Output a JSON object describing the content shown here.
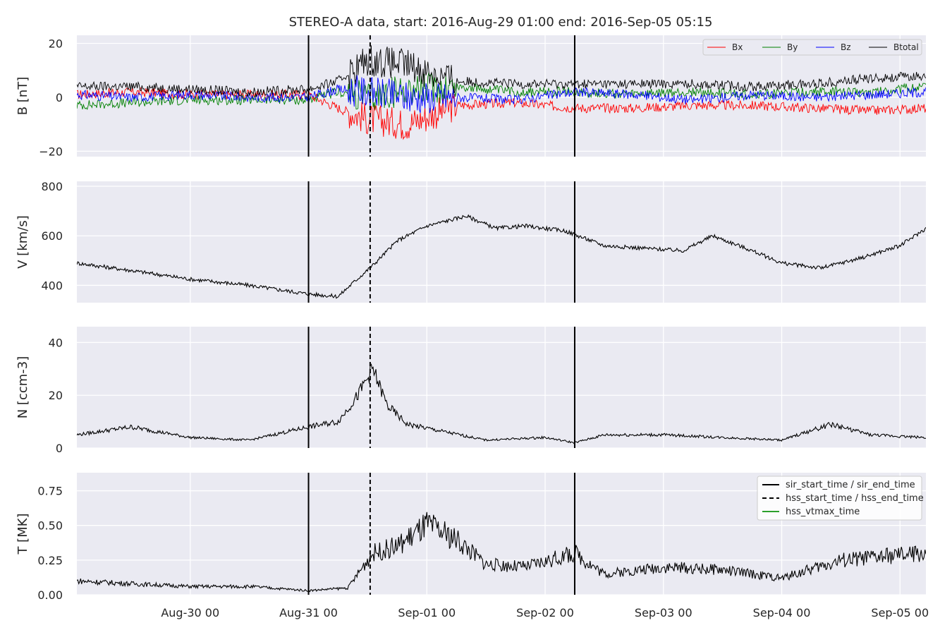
{
  "title": "STEREO-A data, start: 2016-Aug-29 01:00  end: 2016-Sep-05 05:15",
  "colors": {
    "axes_bg": "#eaeaf2",
    "grid": "#ffffff",
    "Bx": "#ff0000",
    "By": "#008000",
    "Bz": "#0000ff",
    "Btotal": "#000000",
    "hss_vtmax": "#2ca02c"
  },
  "chart_data": [
    {
      "type": "line",
      "panel": "B",
      "ylabel": "B [nT]",
      "ylim": [
        -22,
        23
      ],
      "yticks": [
        -20,
        0,
        20
      ],
      "ytick_labels": [
        "−20",
        "0",
        "20"
      ],
      "grid": true,
      "legend_placement": "upper right",
      "legend": [
        "Bx",
        "By",
        "Bz",
        "Btotal"
      ],
      "series": [
        {
          "name": "Bx",
          "x": [
            "Aug-29 01:00",
            "Aug-29 12:00",
            "Aug-30 00:00",
            "Aug-30 12:00",
            "Aug-31 00:00",
            "Aug-31 06:00",
            "Aug-31 12:00",
            "Aug-31 20:00",
            "Sep-01 06:00",
            "Sep-01 18:00",
            "Sep-02 06:00",
            "Sep-02 18:00",
            "Sep-03 06:00",
            "Sep-03 18:00",
            "Sep-04 06:00",
            "Sep-04 18:00",
            "Sep-05 05:15"
          ],
          "values": [
            1,
            2,
            1,
            1,
            1,
            -4,
            -8,
            -10,
            -3,
            -2,
            -4,
            -4,
            -3,
            -3,
            -4,
            -5,
            -4
          ]
        },
        {
          "name": "By",
          "x": [
            "Aug-29 01:00",
            "Aug-29 12:00",
            "Aug-30 00:00",
            "Aug-30 12:00",
            "Aug-31 00:00",
            "Aug-31 06:00",
            "Aug-31 12:00",
            "Aug-31 20:00",
            "Sep-01 06:00",
            "Sep-01 18:00",
            "Sep-02 06:00",
            "Sep-02 18:00",
            "Sep-03 06:00",
            "Sep-03 18:00",
            "Sep-04 06:00",
            "Sep-04 18:00",
            "Sep-05 05:15"
          ],
          "values": [
            -3,
            -2,
            -1,
            -1,
            -1,
            2,
            0,
            3,
            4,
            2,
            2,
            1,
            2,
            1,
            2,
            2,
            4
          ]
        },
        {
          "name": "Bz",
          "x": [
            "Aug-29 01:00",
            "Aug-29 12:00",
            "Aug-30 00:00",
            "Aug-30 12:00",
            "Aug-31 00:00",
            "Aug-31 06:00",
            "Aug-31 12:00",
            "Aug-31 20:00",
            "Sep-01 06:00",
            "Sep-01 18:00",
            "Sep-02 06:00",
            "Sep-02 18:00",
            "Sep-03 06:00",
            "Sep-03 18:00",
            "Sep-04 06:00",
            "Sep-04 18:00",
            "Sep-05 05:15"
          ],
          "values": [
            1,
            0,
            1,
            0,
            0,
            3,
            2,
            0,
            0,
            -1,
            2,
            1,
            -1,
            1,
            0,
            1,
            2
          ]
        },
        {
          "name": "Btotal",
          "x": [
            "Aug-29 01:00",
            "Aug-29 12:00",
            "Aug-30 00:00",
            "Aug-30 12:00",
            "Aug-31 00:00",
            "Aug-31 06:00",
            "Aug-31 12:00",
            "Aug-31 20:00",
            "Sep-01 06:00",
            "Sep-01 18:00",
            "Sep-02 06:00",
            "Sep-02 18:00",
            "Sep-03 06:00",
            "Sep-03 18:00",
            "Sep-04 06:00",
            "Sep-04 18:00",
            "Sep-05 05:15"
          ],
          "values": [
            4,
            4,
            3,
            2,
            3,
            6,
            14,
            12,
            6,
            5,
            5,
            5,
            5,
            4,
            5,
            7,
            8
          ]
        }
      ]
    },
    {
      "type": "line",
      "panel": "V",
      "ylabel": "V [km/s]",
      "ylim": [
        330,
        820
      ],
      "yticks": [
        400,
        600,
        800
      ],
      "ytick_labels": [
        "400",
        "600",
        "800"
      ],
      "grid": true,
      "series": [
        {
          "name": "",
          "x": [
            "Aug-29 01:00",
            "Aug-29 12:00",
            "Aug-30 00:00",
            "Aug-30 12:00",
            "Aug-31 00:00",
            "Aug-31 06:00",
            "Aug-31 09:00",
            "Aug-31 13:00",
            "Aug-31 18:00",
            "Sep-01 00:00",
            "Sep-01 08:00",
            "Sep-01 14:00",
            "Sep-01 20:00",
            "Sep-02 04:00",
            "Sep-02 12:00",
            "Sep-02 20:00",
            "Sep-03 04:00",
            "Sep-03 10:00",
            "Sep-03 18:00",
            "Sep-04 00:00",
            "Sep-04 08:00",
            "Sep-04 16:00",
            "Sep-05 00:00",
            "Sep-05 05:15"
          ],
          "values": [
            490,
            460,
            425,
            400,
            365,
            355,
            410,
            480,
            580,
            640,
            680,
            630,
            640,
            620,
            560,
            550,
            540,
            600,
            540,
            490,
            470,
            510,
            560,
            630
          ]
        }
      ]
    },
    {
      "type": "line",
      "panel": "N",
      "ylabel": "N [ccm-3]",
      "ylim": [
        0,
        46
      ],
      "yticks": [
        0,
        20,
        40
      ],
      "ytick_labels": [
        "0",
        "20",
        "40"
      ],
      "grid": true,
      "series": [
        {
          "name": "",
          "x": [
            "Aug-29 01:00",
            "Aug-29 12:00",
            "Aug-30 00:00",
            "Aug-30 12:00",
            "Aug-31 00:00",
            "Aug-31 06:00",
            "Aug-31 10:00",
            "Aug-31 13:00",
            "Aug-31 16:00",
            "Aug-31 20:00",
            "Sep-01 04:00",
            "Sep-01 12:00",
            "Sep-02 00:00",
            "Sep-02 06:00",
            "Sep-02 12:00",
            "Sep-03 00:00",
            "Sep-03 12:00",
            "Sep-04 00:00",
            "Sep-04 10:00",
            "Sep-04 18:00",
            "Sep-05 05:15"
          ],
          "values": [
            5,
            8,
            4,
            3,
            8,
            10,
            20,
            30,
            16,
            9,
            6,
            3,
            4,
            2,
            5,
            5,
            4,
            3,
            9,
            5,
            4
          ]
        }
      ]
    },
    {
      "type": "line",
      "panel": "T",
      "ylabel": "T [MK]",
      "ylim": [
        0,
        0.88
      ],
      "yticks": [
        0,
        0.25,
        0.5,
        0.75
      ],
      "ytick_labels": [
        "0.00",
        "0.25",
        "0.50",
        "0.75"
      ],
      "grid": true,
      "legend_placement": "upper right",
      "legend": [
        "sir_start_time / sir_end_time",
        "hss_start_time / hss_end_time",
        "hss_vtmax_time"
      ],
      "series": [
        {
          "name": "",
          "x": [
            "Aug-29 01:00",
            "Aug-29 12:00",
            "Aug-30 00:00",
            "Aug-30 12:00",
            "Aug-31 00:00",
            "Aug-31 08:00",
            "Aug-31 13:00",
            "Aug-31 18:00",
            "Sep-01 00:00",
            "Sep-01 06:00",
            "Sep-01 12:00",
            "Sep-01 20:00",
            "Sep-02 06:00",
            "Sep-02 12:00",
            "Sep-03 00:00",
            "Sep-03 12:00",
            "Sep-04 00:00",
            "Sep-04 12:00",
            "Sep-05 05:15"
          ],
          "values": [
            0.1,
            0.08,
            0.06,
            0.06,
            0.03,
            0.05,
            0.3,
            0.35,
            0.5,
            0.4,
            0.22,
            0.2,
            0.3,
            0.15,
            0.2,
            0.18,
            0.12,
            0.25,
            0.3
          ]
        }
      ]
    }
  ],
  "xaxis": {
    "start": "2016-Aug-29 01:00",
    "end": "2016-Sep-05 05:15",
    "ticks": [
      "Aug-30 00:00",
      "Aug-31 00:00",
      "Sep-01 00:00",
      "Sep-02 00:00",
      "Sep-03 00:00",
      "Sep-04 00:00",
      "Sep-05 00:00"
    ],
    "tick_labels": [
      "Aug-30 00",
      "Aug-31 00",
      "Sep-01 00",
      "Sep-02 00",
      "Sep-03 00",
      "Sep-04 00",
      "Sep-05 00"
    ]
  },
  "events": {
    "sir_start_time": "2016-Aug-31 00:00",
    "hss_start_time": "2016-Aug-31 12:30",
    "sir_end_time": "2016-Sep-02 06:00"
  }
}
